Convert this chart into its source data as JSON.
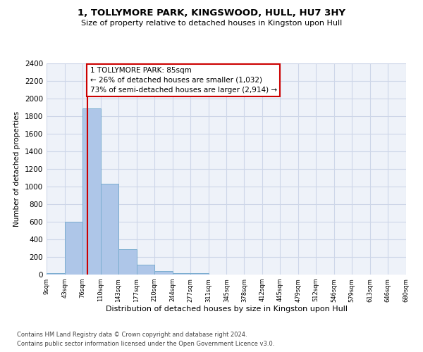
{
  "title": "1, TOLLYMORE PARK, KINGSWOOD, HULL, HU7 3HY",
  "subtitle": "Size of property relative to detached houses in Kingston upon Hull",
  "xlabel": "Distribution of detached houses by size in Kingston upon Hull",
  "ylabel": "Number of detached properties",
  "footnote1": "Contains HM Land Registry data © Crown copyright and database right 2024.",
  "footnote2": "Contains public sector information licensed under the Open Government Licence v3.0.",
  "bar_edges": [
    9,
    43,
    76,
    110,
    143,
    177,
    210,
    244,
    277,
    311,
    345,
    378,
    412,
    445,
    479,
    512,
    546,
    579,
    613,
    646,
    680
  ],
  "bar_heights": [
    15,
    600,
    1890,
    1030,
    285,
    115,
    40,
    20,
    15,
    0,
    0,
    0,
    0,
    0,
    0,
    0,
    0,
    0,
    0,
    0
  ],
  "bar_color": "#aec6e8",
  "bar_edge_color": "#7aadcf",
  "property_size": 85,
  "property_line_color": "#cc0000",
  "annotation_text": "1 TOLLYMORE PARK: 85sqm\n← 26% of detached houses are smaller (1,032)\n73% of semi-detached houses are larger (2,914) →",
  "annotation_box_color": "#cc0000",
  "ylim": [
    0,
    2400
  ],
  "yticks": [
    0,
    200,
    400,
    600,
    800,
    1000,
    1200,
    1400,
    1600,
    1800,
    2000,
    2200,
    2400
  ],
  "grid_color": "#cdd6e8",
  "bg_color": "#eef2f9",
  "tick_labels": [
    "9sqm",
    "43sqm",
    "76sqm",
    "110sqm",
    "143sqm",
    "177sqm",
    "210sqm",
    "244sqm",
    "277sqm",
    "311sqm",
    "345sqm",
    "378sqm",
    "412sqm",
    "445sqm",
    "479sqm",
    "512sqm",
    "546sqm",
    "579sqm",
    "613sqm",
    "646sqm",
    "680sqm"
  ]
}
